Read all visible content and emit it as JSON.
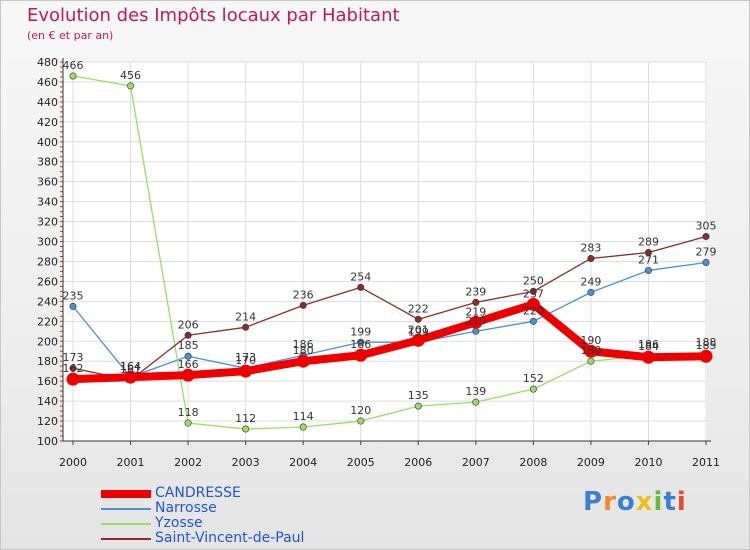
{
  "header": {
    "title": "Evolution des Impôts locaux par Habitant",
    "subtitle": "(en € et par an)"
  },
  "logo": {
    "text": "Proxiti"
  },
  "chart_data": {
    "type": "line",
    "title": "Evolution des Impôts locaux par Habitant",
    "subtitle": "(en € et par an)",
    "xlabel": "",
    "ylabel": "",
    "categories": [
      "2000",
      "2001",
      "2002",
      "2003",
      "2004",
      "2005",
      "2006",
      "2007",
      "2008",
      "2009",
      "2010",
      "2011"
    ],
    "ylim": [
      100,
      480
    ],
    "yticks": [
      100,
      120,
      140,
      160,
      180,
      200,
      220,
      240,
      260,
      280,
      300,
      320,
      340,
      360,
      380,
      400,
      420,
      440,
      460,
      480
    ],
    "grid": true,
    "legend_position": "bottom-left",
    "series": [
      {
        "name": "CANDRESSE",
        "color": "#ee0000",
        "width": 8,
        "values": [
          162,
          164,
          166,
          170,
          180,
          186,
          201,
          219,
          237,
          190,
          184,
          185
        ],
        "labels": [
          "162",
          "164",
          "166",
          "170",
          "180",
          "186",
          "201",
          "219",
          "237",
          "190",
          "184",
          "185"
        ]
      },
      {
        "name": "Narrosse",
        "color": "#4a90d9",
        "width": 1.3,
        "values": [
          235,
          164,
          185,
          173,
          186,
          199,
          199,
          210,
          220,
          249,
          271,
          279
        ],
        "labels": [
          "235",
          "164",
          "185",
          "173",
          "186",
          "199",
          "199",
          "210",
          "220",
          "249",
          "271",
          "279"
        ]
      },
      {
        "name": "Yzosse",
        "color": "#99dd66",
        "width": 1.3,
        "values": [
          466,
          456,
          118,
          112,
          114,
          120,
          135,
          139,
          152,
          180,
          186,
          188
        ],
        "labels": [
          "466",
          "456",
          "118",
          "112",
          "114",
          "120",
          "135",
          "139",
          "152",
          "180",
          "186",
          "188"
        ]
      },
      {
        "name": "Saint-Vincent-de-Paul",
        "color": "#8b2c2c",
        "width": 1.3,
        "values": [
          173,
          161,
          206,
          214,
          236,
          254,
          222,
          239,
          250,
          283,
          289,
          305
        ],
        "labels": [
          "173",
          "161",
          "206",
          "214",
          "236",
          "254",
          "222",
          "239",
          "250",
          "283",
          "289",
          "305"
        ]
      }
    ]
  }
}
